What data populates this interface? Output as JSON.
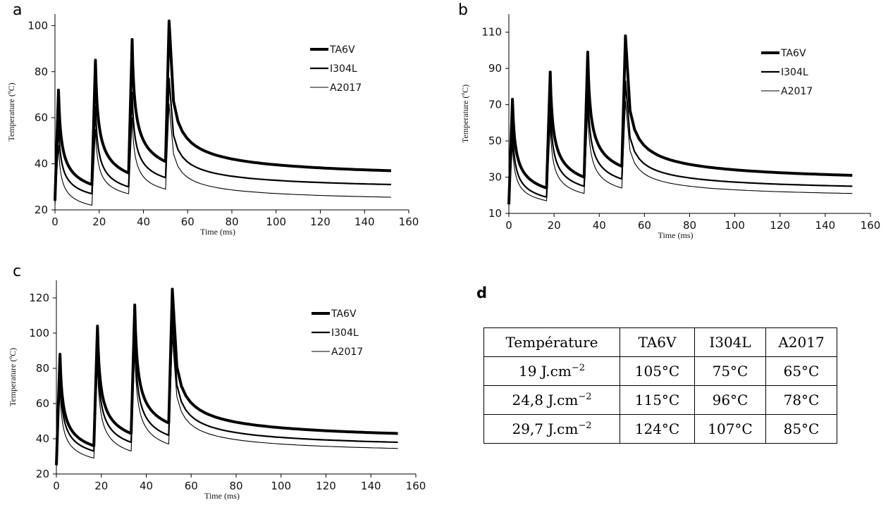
{
  "chart_data": [
    {
      "type": "line",
      "panel_label": "a",
      "xlabel": "Time (ms)",
      "ylabel": "Temperature (ºC)",
      "xlim": [
        0,
        160
      ],
      "ylim": [
        20,
        105
      ],
      "xticks": [
        0,
        20,
        40,
        60,
        80,
        100,
        120,
        140,
        160
      ],
      "yticks": [
        20,
        40,
        60,
        80,
        100
      ],
      "legend_position": "top-right",
      "pulse_times": [
        0,
        16.7,
        33.3,
        50
      ],
      "end_time": 152,
      "series": [
        {
          "name": "TA6V",
          "baseline": 24,
          "peaks": [
            72,
            85,
            94,
            102
          ],
          "troughs": [
            31,
            36,
            41,
            48
          ],
          "final": 37
        },
        {
          "name": "I304L",
          "baseline": 24,
          "peaks": [
            57,
            65,
            71,
            77
          ],
          "troughs": [
            27,
            30,
            34,
            38
          ],
          "final": 31
        },
        {
          "name": "A2017",
          "baseline": 22,
          "peaks": [
            48,
            55,
            60,
            66
          ],
          "troughs": [
            22,
            27,
            29,
            33
          ],
          "final": 25.5
        }
      ]
    },
    {
      "type": "line",
      "panel_label": "b",
      "xlabel": "Time (ms)",
      "ylabel": "Temperature (ºC)",
      "xlim": [
        0,
        160
      ],
      "ylim": [
        10,
        120
      ],
      "xticks": [
        0,
        20,
        40,
        60,
        80,
        100,
        120,
        140,
        160
      ],
      "yticks": [
        10,
        30,
        50,
        70,
        90,
        110
      ],
      "legend_position": "top-right",
      "pulse_times": [
        0,
        16.7,
        33.3,
        50
      ],
      "end_time": 152,
      "series": [
        {
          "name": "TA6V",
          "baseline": 15,
          "peaks": [
            73,
            88,
            99,
            108
          ],
          "troughs": [
            24,
            30,
            36,
            44
          ],
          "final": 31
        },
        {
          "name": "I304L",
          "baseline": 15,
          "peaks": [
            57,
            70,
            78,
            83
          ],
          "troughs": [
            19,
            25,
            29,
            35
          ],
          "final": 25
        },
        {
          "name": "A2017",
          "baseline": 14,
          "peaks": [
            48,
            59,
            67,
            72
          ],
          "troughs": [
            17,
            21,
            24,
            28
          ],
          "final": 21
        }
      ]
    },
    {
      "type": "line",
      "panel_label": "c",
      "xlabel": "Time (ms)",
      "ylabel": "Temperature (ºC)",
      "xlim": [
        0,
        160
      ],
      "ylim": [
        20,
        130
      ],
      "xticks": [
        0,
        20,
        40,
        60,
        80,
        100,
        120,
        140,
        160
      ],
      "yticks": [
        20,
        40,
        60,
        80,
        100,
        120
      ],
      "legend_position": "top-right",
      "pulse_times": [
        0,
        16.7,
        33.3,
        50
      ],
      "end_time": 152,
      "series": [
        {
          "name": "TA6V",
          "baseline": 25,
          "peaks": [
            88,
            104,
            116,
            125
          ],
          "troughs": [
            36,
            43,
            49,
            57
          ],
          "final": 43
        },
        {
          "name": "I304L",
          "baseline": 25,
          "peaks": [
            78,
            91,
            100,
            108
          ],
          "troughs": [
            33,
            38,
            42,
            49
          ],
          "final": 38
        },
        {
          "name": "A2017",
          "baseline": 24,
          "peaks": [
            68,
            82,
            90,
            98
          ],
          "troughs": [
            29,
            33,
            37,
            44
          ],
          "final": 34.5
        }
      ]
    },
    {
      "type": "table",
      "panel_label": "d",
      "columns": [
        "Température",
        "TA6V",
        "I304L",
        "A2017"
      ],
      "rows": [
        {
          "fluence": "19 J.cm",
          "exp": "−2",
          "values": [
            "105°C",
            "75°C",
            "65°C"
          ]
        },
        {
          "fluence": "24,8 J.cm",
          "exp": "−2",
          "values": [
            "115°C",
            "96°C",
            "78°C"
          ]
        },
        {
          "fluence": "29,7 J.cm",
          "exp": "−2",
          "values": [
            "124°C",
            "107°C",
            "85°C"
          ]
        }
      ]
    }
  ]
}
